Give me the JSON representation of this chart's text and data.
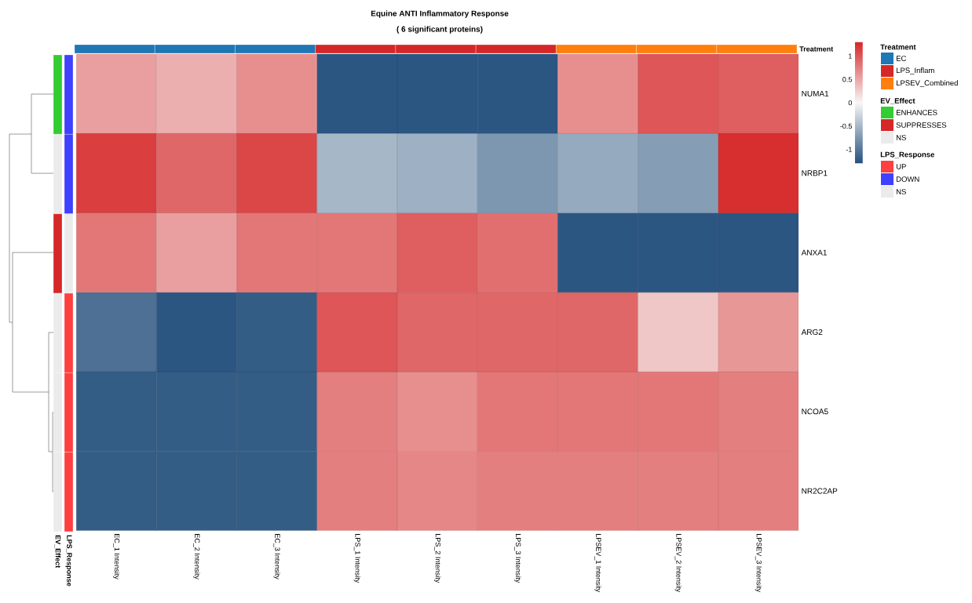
{
  "chart_data": [
    {
      "type": "heatmap",
      "title": "Equine ANTI Inflammatory Response",
      "subtitle": "( 6 significant proteins)",
      "categories": [
        "EC_1 Intensity",
        "EC_2 Intensity",
        "EC_3 Intensity",
        "LPS_1 Intensity",
        "LPS_2 Intensity",
        "LPS_3 Intensity",
        "LPSEV_1 Intensity",
        "LPSEV_2 Intensity",
        "LPSEV_3 Intensity"
      ],
      "y_categories": [
        "NUMA1",
        "NRBP1",
        "ANXA1",
        "ARG2",
        "NCOA5",
        "NR2C2AP"
      ],
      "cells": [
        [
          0.55,
          0.45,
          0.65,
          -1.25,
          -1.25,
          -1.25,
          0.65,
          1.0,
          0.95
        ],
        [
          1.15,
          0.9,
          1.1,
          -0.5,
          -0.55,
          -0.75,
          -0.6,
          -0.7,
          1.25
        ],
        [
          0.8,
          0.55,
          0.8,
          0.8,
          0.95,
          0.85,
          -1.25,
          -1.25,
          -1.25
        ],
        [
          -1.05,
          -1.25,
          -1.2,
          1.0,
          0.9,
          0.9,
          0.9,
          0.3,
          0.6
        ],
        [
          -1.2,
          -1.2,
          -1.2,
          0.75,
          0.65,
          0.8,
          0.8,
          0.8,
          0.75
        ],
        [
          -1.2,
          -1.2,
          -1.2,
          0.75,
          0.7,
          0.75,
          0.75,
          0.75,
          0.75
        ]
      ],
      "clim": [
        -1.3,
        1.3
      ],
      "cticks": [
        -1,
        -0.5,
        0,
        0.5,
        1
      ]
    },
    {
      "type": "other",
      "title": "Treatment",
      "legend_title": "Treatment",
      "series": [
        {
          "name": "EC",
          "color": "#1f77b4"
        },
        {
          "name": "LPS_Inflam",
          "color": "#d62728"
        },
        {
          "name": "LPSEV_Combined",
          "color": "#ff7f0e"
        }
      ],
      "colors": [
        "#1f77b4",
        "#1f77b4",
        "#1f77b4",
        "#d62728",
        "#d62728",
        "#d62728",
        "#ff7f0e",
        "#ff7f0e",
        "#ff7f0e"
      ]
    },
    {
      "type": "other",
      "title": "EV_Effect",
      "legend_title": "EV_Effect",
      "series": [
        {
          "name": "ENHANCES",
          "color": "#33cc33"
        },
        {
          "name": "SUPPRESSES",
          "color": "#d62728"
        },
        {
          "name": "NS",
          "color": "#ebebeb"
        }
      ],
      "colors": [
        "#33cc33",
        "#ebebeb",
        "#d62728",
        "#ebebeb",
        "#ebebeb",
        "#ebebeb"
      ]
    },
    {
      "type": "other",
      "title": "LPS_Response",
      "legend_title": "LPS_Response",
      "series": [
        {
          "name": "UP",
          "color": "#ff4040"
        },
        {
          "name": "DOWN",
          "color": "#4040ff"
        },
        {
          "name": "NS",
          "color": "#ebebeb"
        }
      ],
      "colors": [
        "#4040ff",
        "#4040ff",
        "#ebebeb",
        "#ff4040",
        "#ff4040",
        "#ff4040"
      ]
    }
  ]
}
